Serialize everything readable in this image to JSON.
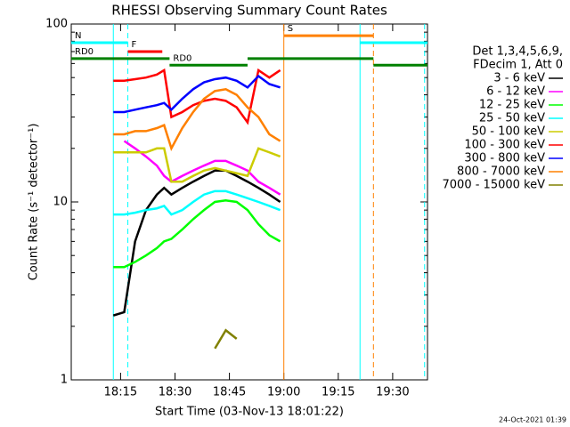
{
  "chart_data": {
    "type": "line",
    "title": "RHESSI Observing Summary Count Rates",
    "x_label": "Start Time (03-Nov-13 18:01:22)",
    "y_label": "Count Rate (s⁻¹ detector⁻¹)",
    "footer": "24-Oct-2021 01:39",
    "legend_title": [
      "Det 1,3,4,5,6,9,",
      "FDecim 1, Att 0"
    ],
    "log_y": true,
    "xlim": [
      1081.4,
      1179.6
    ],
    "ylim": [
      1,
      100
    ],
    "xticks": [
      {
        "value": 1095,
        "label": "18:15"
      },
      {
        "value": 1110,
        "label": "18:30"
      },
      {
        "value": 1125,
        "label": "18:45"
      },
      {
        "value": 1140,
        "label": "19:00"
      },
      {
        "value": 1155,
        "label": "19:15"
      },
      {
        "value": 1170,
        "label": "19:30"
      }
    ],
    "yticks": [
      1,
      10,
      100
    ],
    "minor_yticks": [
      2,
      3,
      4,
      5,
      6,
      7,
      8,
      9,
      20,
      30,
      40,
      50,
      60,
      70,
      80,
      90
    ],
    "x": [
      1093,
      1096,
      1099,
      1102,
      1105,
      1107,
      1109,
      1112,
      1115,
      1118,
      1121,
      1124,
      1127,
      1130,
      1133,
      1136,
      1139
    ],
    "series": [
      {
        "name": "3 - 6 keV",
        "color": "#000000",
        "values": [
          2.3,
          2.4,
          6,
          9,
          11,
          12,
          11,
          12,
          13,
          14,
          15,
          15,
          14,
          13,
          12,
          11,
          10
        ]
      },
      {
        "name": "6 - 12 keV",
        "color": "#ff00ff",
        "values": [
          null,
          22,
          20,
          18,
          16,
          14,
          13,
          14,
          15,
          16,
          17,
          17,
          16,
          15,
          13,
          12,
          11
        ]
      },
      {
        "name": "12 - 25 keV",
        "color": "#00ff00",
        "values": [
          4.3,
          4.3,
          4.6,
          5,
          5.5,
          6,
          6.2,
          7,
          8,
          9,
          10,
          10.2,
          10,
          9,
          7.5,
          6.5,
          6
        ]
      },
      {
        "name": "25 - 50 keV",
        "color": "#00ffff",
        "values": [
          8.5,
          8.5,
          8.7,
          9,
          9.2,
          9.5,
          8.5,
          9,
          10,
          11,
          11.5,
          11.5,
          11,
          10.5,
          10,
          9.5,
          9
        ]
      },
      {
        "name": "50 - 100 keV",
        "color": "#cccc00",
        "values": [
          19,
          19,
          19,
          19,
          20,
          20,
          13,
          13,
          14,
          15,
          15.5,
          15,
          14.5,
          14,
          20,
          19,
          18
        ]
      },
      {
        "name": "100 - 300 keV",
        "color": "#ff0000",
        "values": [
          48,
          48,
          49,
          50,
          52,
          55,
          30,
          32,
          35,
          37,
          38,
          37,
          34,
          28,
          55,
          50,
          55
        ]
      },
      {
        "name": "300 - 800 keV",
        "color": "#0000ff",
        "values": [
          32,
          32,
          33,
          34,
          35,
          36,
          33,
          38,
          43,
          47,
          49,
          50,
          48,
          44,
          51,
          46,
          44
        ]
      },
      {
        "name": "800 - 7000 keV",
        "color": "#ff8000",
        "values": [
          24,
          24,
          25,
          25,
          26,
          27,
          20,
          26,
          32,
          38,
          42,
          43,
          40,
          34,
          30,
          24,
          22
        ]
      },
      {
        "name": "7000 - 15000 keV",
        "color": "#808000",
        "values": [
          null,
          null,
          null,
          null,
          null,
          null,
          null,
          null,
          null,
          null,
          1.5,
          1.9,
          1.7,
          null,
          null,
          null,
          null
        ]
      }
    ],
    "vlines": [
      {
        "x": 1093,
        "color": "#00ffff",
        "dashed": false
      },
      {
        "x": 1097,
        "color": "#00ffff",
        "dashed": true
      },
      {
        "x": 1140,
        "color": "#ff8000",
        "dashed": false
      },
      {
        "x": 1161,
        "color": "#00ffff",
        "dashed": false
      },
      {
        "x": 1164.7,
        "color": "#ff8000",
        "dashed": true
      },
      {
        "x": 1178.8,
        "color": "#00ffff",
        "dashed": true
      }
    ],
    "flags": [
      {
        "label": "N",
        "color": "#00ffff",
        "segments": [
          {
            "x": [
              1081.4,
              1097
            ],
            "y": 78.5
          },
          {
            "x": [
              1161,
              1179.6
            ],
            "y": 78.5
          }
        ]
      },
      {
        "label": "F",
        "color": "#ff0000",
        "segments": [
          {
            "x": [
              1097,
              1106.5
            ],
            "y": 70
          }
        ]
      },
      {
        "label": "RD0",
        "color": "#008000",
        "segments": [
          {
            "x": [
              1081.4,
              1108.5
            ],
            "y": 63.9
          },
          {
            "x": [
              1130,
              1164.7
            ],
            "y": 63.9
          }
        ]
      },
      {
        "label": "RD0",
        "color": "#008000",
        "segments": [
          {
            "x": [
              1108.5,
              1130
            ],
            "y": 58.7
          },
          {
            "x": [
              1164.7,
              1179.6
            ],
            "y": 58.7
          }
        ]
      },
      {
        "label": "S",
        "color": "#ff8000",
        "segments": [
          {
            "x": [
              1140,
              1164.7
            ],
            "y": 86
          }
        ]
      }
    ]
  }
}
